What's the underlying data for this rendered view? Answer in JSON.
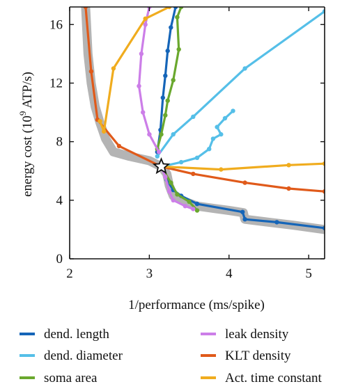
{
  "chart_data": {
    "type": "line",
    "xlabel": "1/performance (ms/spike)",
    "ylabel_parts": {
      "before": "energy cost (10",
      "sup": "9",
      "after": " ATP/s)"
    },
    "xlim": [
      2,
      5.2
    ],
    "ylim": [
      0,
      17.2
    ],
    "x_ticks": [
      2,
      3,
      4,
      5
    ],
    "y_ticks": [
      0,
      4,
      8,
      12,
      16
    ],
    "grid": false,
    "legend_position": "bottom",
    "optimum": {
      "x": 3.15,
      "y": 6.3,
      "marker": "star"
    },
    "pareto_front": [
      [
        2.2,
        17.2
      ],
      [
        2.23,
        14
      ],
      [
        2.27,
        12
      ],
      [
        2.32,
        10.4
      ],
      [
        2.38,
        9.3
      ],
      [
        2.45,
        8.2
      ],
      [
        2.55,
        7.3
      ],
      [
        2.75,
        7.0
      ],
      [
        3.0,
        6.7
      ],
      [
        3.15,
        6.3
      ],
      [
        3.22,
        5.8
      ],
      [
        3.25,
        5.0
      ],
      [
        3.3,
        4.3
      ],
      [
        3.4,
        4.0
      ],
      [
        3.6,
        3.6
      ],
      [
        3.8,
        3.45
      ],
      [
        4.0,
        3.3
      ],
      [
        4.18,
        3.15
      ],
      [
        4.2,
        2.7
      ],
      [
        4.5,
        2.5
      ],
      [
        4.8,
        2.3
      ],
      [
        5.2,
        2.0
      ]
    ],
    "series": [
      {
        "name": "dend. length",
        "color": "#1565b8",
        "points": [
          [
            3.1,
            7.3
          ],
          [
            3.14,
            8.8
          ],
          [
            3.17,
            11.0
          ],
          [
            3.2,
            12.5
          ],
          [
            3.23,
            14.2
          ],
          [
            3.27,
            15.8
          ],
          [
            3.33,
            17.2
          ]
        ],
        "points2": [
          [
            3.15,
            6.3
          ],
          [
            3.22,
            5.4
          ],
          [
            3.3,
            4.7
          ],
          [
            3.4,
            4.3
          ],
          [
            3.6,
            3.75
          ],
          [
            4.17,
            3.2
          ],
          [
            4.2,
            2.7
          ],
          [
            4.6,
            2.5
          ],
          [
            5.2,
            2.1
          ]
        ]
      },
      {
        "name": "dend. diameter",
        "color": "#55bfe8",
        "points": [
          [
            3.15,
            6.3
          ],
          [
            3.4,
            6.6
          ],
          [
            3.6,
            6.9
          ],
          [
            3.75,
            7.5
          ],
          [
            3.8,
            8.2
          ],
          [
            3.9,
            8.5
          ],
          [
            3.85,
            9.0
          ],
          [
            3.95,
            9.6
          ],
          [
            4.05,
            10.1
          ]
        ],
        "points2": [
          [
            3.1,
            7.0
          ],
          [
            3.3,
            8.5
          ],
          [
            3.55,
            9.7
          ],
          [
            4.2,
            13.0
          ],
          [
            5.2,
            16.9
          ]
        ]
      },
      {
        "name": "soma area",
        "color": "#6aa82e",
        "points": [
          [
            3.15,
            6.3
          ],
          [
            3.27,
            5.2
          ],
          [
            3.35,
            4.4
          ],
          [
            3.5,
            3.9
          ],
          [
            3.6,
            3.3
          ]
        ],
        "points2": [
          [
            3.1,
            7.5
          ],
          [
            3.15,
            8.5
          ],
          [
            3.2,
            9.8
          ],
          [
            3.23,
            10.8
          ],
          [
            3.3,
            12.2
          ],
          [
            3.37,
            14.3
          ],
          [
            3.35,
            16.5
          ],
          [
            3.4,
            17.2
          ]
        ]
      },
      {
        "name": "leak density",
        "color": "#cc7ee8",
        "points": [
          [
            3.15,
            6.3
          ],
          [
            3.2,
            5.6
          ],
          [
            3.25,
            4.6
          ],
          [
            3.3,
            4.0
          ],
          [
            3.45,
            3.6
          ],
          [
            3.55,
            3.4
          ]
        ],
        "points2": [
          [
            3.12,
            7.3
          ],
          [
            3.0,
            8.5
          ],
          [
            2.92,
            10.0
          ],
          [
            2.87,
            11.8
          ],
          [
            2.9,
            14.0
          ],
          [
            2.95,
            16.0
          ],
          [
            3.0,
            17.2
          ]
        ]
      },
      {
        "name": "KLT density",
        "color": "#e05a1a",
        "points": [
          [
            2.2,
            17.2
          ],
          [
            2.27,
            12.8
          ],
          [
            2.35,
            9.5
          ],
          [
            2.62,
            7.7
          ],
          [
            3.15,
            6.3
          ],
          [
            3.55,
            5.8
          ],
          [
            4.2,
            5.2
          ],
          [
            4.75,
            4.8
          ],
          [
            5.2,
            4.6
          ]
        ]
      },
      {
        "name": "Act. time constant",
        "color": "#f0ac1e",
        "points": [
          [
            2.38,
            9.4
          ],
          [
            2.43,
            8.7
          ],
          [
            2.55,
            13.0
          ],
          [
            2.95,
            16.4
          ],
          [
            3.25,
            17.2
          ]
        ],
        "points2": [
          [
            3.15,
            6.3
          ],
          [
            3.9,
            6.1
          ],
          [
            4.75,
            6.4
          ],
          [
            5.2,
            6.5
          ]
        ]
      }
    ]
  }
}
